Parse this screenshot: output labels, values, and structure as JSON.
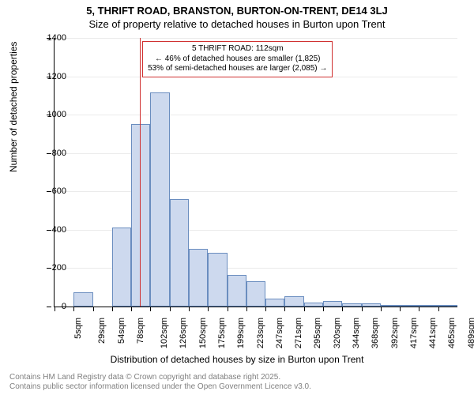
{
  "title1": "5, THRIFT ROAD, BRANSTON, BURTON-ON-TRENT, DE14 3LJ",
  "title2": "Size of property relative to detached houses in Burton upon Trent",
  "ylabel": "Number of detached properties",
  "xlabel": "Distribution of detached houses by size in Burton upon Trent",
  "footer1": "Contains HM Land Registry data © Crown copyright and database right 2025.",
  "footer2": "Contains public sector information licensed under the Open Government Licence v3.0.",
  "chart": {
    "type": "histogram",
    "bar_fill": "#cdd9ee",
    "bar_stroke": "#6a8dbf",
    "background_color": "#ffffff",
    "grid_color": "#ebebeb",
    "marker_color": "#d03030",
    "y": {
      "min": 0,
      "max": 1400,
      "step": 200
    },
    "x_labels": [
      "5sqm",
      "29sqm",
      "54sqm",
      "78sqm",
      "102sqm",
      "126sqm",
      "150sqm",
      "175sqm",
      "199sqm",
      "223sqm",
      "247sqm",
      "271sqm",
      "295sqm",
      "320sqm",
      "344sqm",
      "368sqm",
      "392sqm",
      "417sqm",
      "441sqm",
      "465sqm",
      "489sqm"
    ],
    "bars": [
      0,
      75,
      0,
      410,
      950,
      1115,
      560,
      300,
      280,
      165,
      130,
      40,
      55,
      20,
      30,
      15,
      15,
      5,
      5,
      5,
      5
    ],
    "marker_bin_index": 4.45,
    "annotation": {
      "line1": "5 THRIFT ROAD: 112sqm",
      "line2": "← 46% of detached houses are smaller (1,825)",
      "line3": "53% of semi-detached houses are larger (2,085) →"
    },
    "label_fontsize": 11,
    "axis_label_fontsize": 12,
    "title_fontsize": 13
  }
}
